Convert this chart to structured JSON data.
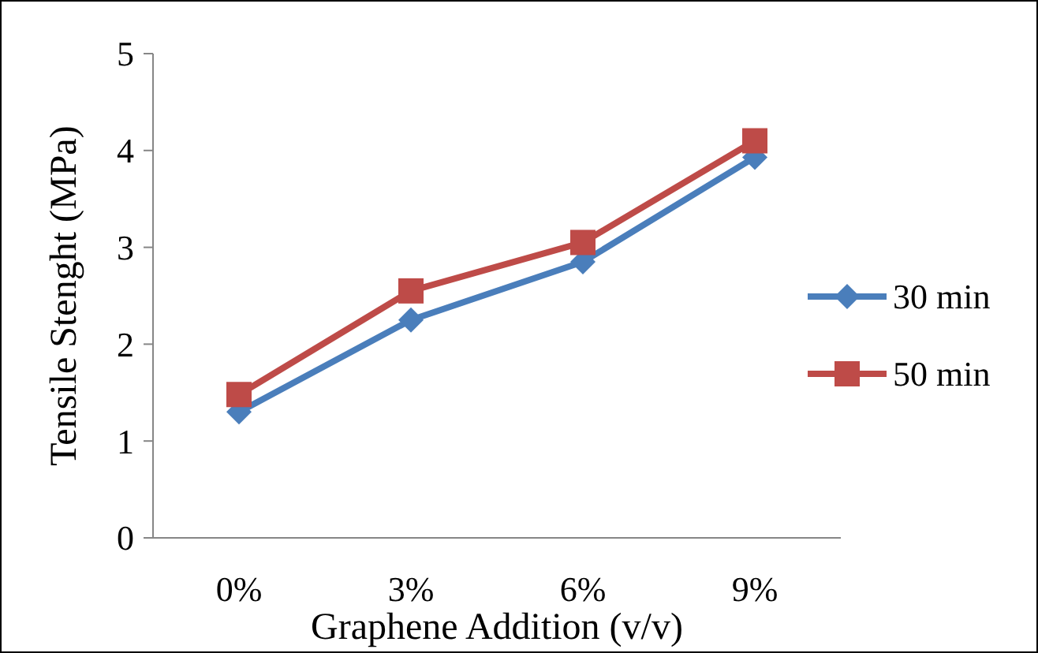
{
  "chart_data": {
    "type": "line",
    "xlabel": "Graphene Addition (v/v)",
    "ylabel": "Tensile Stenght (MPa)",
    "categories": [
      "0%",
      "3%",
      "6%",
      "9%"
    ],
    "series": [
      {
        "name": "30 min",
        "color": "#4a7ebb",
        "marker": "diamond",
        "values": [
          1.3,
          2.25,
          2.85,
          3.93
        ]
      },
      {
        "name": "50 min",
        "color": "#be4b48",
        "marker": "square",
        "values": [
          1.48,
          2.55,
          3.05,
          4.1
        ]
      }
    ],
    "ylim": [
      0,
      5
    ],
    "yticks": [
      0,
      1,
      2,
      3,
      4,
      5
    ],
    "grid": false,
    "legend": "right",
    "line_style": "solid"
  }
}
